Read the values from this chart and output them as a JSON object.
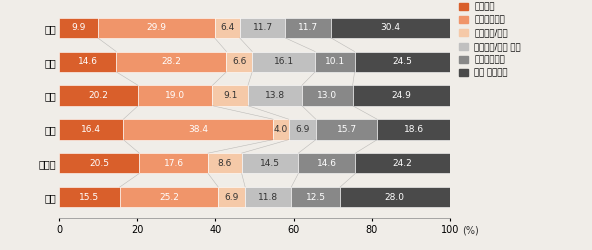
{
  "categories": [
    "미국",
    "일본",
    "독일",
    "중국",
    "프랑스",
    "전체"
  ],
  "series_keys": [
    "의료용품",
    "진단영상기기",
    "치과기기/용품",
    "정형외과/보철 기기",
    "환자보조기기",
    "기타 의료기기"
  ],
  "series": {
    "의료용품": [
      9.9,
      14.6,
      20.2,
      16.4,
      20.5,
      15.5
    ],
    "진단영상기기": [
      29.9,
      28.2,
      19.0,
      38.4,
      17.6,
      25.2
    ],
    "치과기기/용품": [
      6.4,
      6.6,
      9.1,
      4.0,
      8.6,
      6.9
    ],
    "정형외과/보철 기기": [
      11.7,
      16.1,
      13.8,
      6.9,
      14.5,
      11.8
    ],
    "환자보조기기": [
      11.7,
      10.1,
      13.0,
      15.7,
      14.6,
      12.5
    ],
    "기타 의료기기": [
      30.4,
      24.5,
      24.9,
      18.6,
      24.2,
      28.0
    ]
  },
  "colors": [
    "#d95f2b",
    "#f0956a",
    "#f5c9a8",
    "#c0c0c0",
    "#888888",
    "#4a4a4a"
  ],
  "legend_labels": [
    "의료용품",
    "진단영상기기",
    "치과기기/용품",
    "정형외과/보철 기기",
    "환자보조기기",
    "기타 의료기기"
  ],
  "xlim": [
    0,
    100
  ],
  "xticks": [
    0,
    20,
    40,
    60,
    80,
    100
  ],
  "bar_height": 0.6,
  "font_size": 7.0,
  "label_font_size": 6.5,
  "background_color": "#f0ede8",
  "text_color_dark": "#333333",
  "text_color_light": "#ffffff"
}
